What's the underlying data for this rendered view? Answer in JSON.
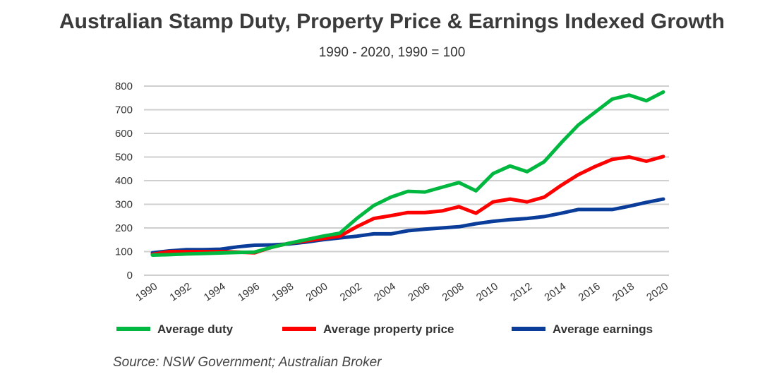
{
  "chart_data": {
    "type": "line",
    "title": "Australian Stamp Duty, Property Price & Earnings Indexed Growth",
    "subtitle": "1990 - 2020, 1990 = 100",
    "xlabel": "",
    "ylabel": "",
    "ylim": [
      0,
      800
    ],
    "yticks": [
      0,
      100,
      200,
      300,
      400,
      500,
      600,
      700,
      800
    ],
    "xticks": [
      1990,
      1992,
      1994,
      1996,
      1998,
      2000,
      2002,
      2004,
      2006,
      2008,
      2010,
      2012,
      2014,
      2016,
      2018,
      2020
    ],
    "grid": true,
    "legend_position": "bottom",
    "x": [
      1990,
      1991,
      1992,
      1993,
      1994,
      1995,
      1996,
      1997,
      1998,
      1999,
      2000,
      2001,
      2002,
      2003,
      2004,
      2005,
      2006,
      2007,
      2008,
      2009,
      2010,
      2011,
      2012,
      2013,
      2014,
      2015,
      2016,
      2017,
      2018,
      2019,
      2020
    ],
    "series": [
      {
        "name": "Average earnings",
        "color": "#0a3d9a",
        "values": [
          95,
          103,
          108,
          108,
          110,
          120,
          127,
          128,
          132,
          140,
          150,
          158,
          165,
          175,
          175,
          188,
          195,
          200,
          205,
          218,
          228,
          235,
          240,
          248,
          262,
          278,
          278,
          278,
          292,
          308,
          322
        ]
      },
      {
        "name": "Average property price",
        "color": "#ff0000",
        "values": [
          88,
          100,
          100,
          100,
          100,
          98,
          95,
          118,
          135,
          145,
          155,
          165,
          205,
          240,
          252,
          265,
          265,
          272,
          290,
          262,
          310,
          322,
          310,
          330,
          380,
          425,
          460,
          490,
          500,
          482,
          502
        ]
      },
      {
        "name": "Average duty",
        "color": "#00b83f",
        "values": [
          85,
          87,
          90,
          92,
          94,
          96,
          98,
          118,
          135,
          150,
          165,
          178,
          240,
          295,
          330,
          355,
          352,
          372,
          392,
          357,
          430,
          462,
          438,
          480,
          560,
          635,
          690,
          745,
          762,
          738,
          775
        ]
      }
    ],
    "legend_order": [
      "Average duty",
      "Average property price",
      "Average earnings"
    ],
    "source": "Source: NSW Government; Australian Broker"
  }
}
